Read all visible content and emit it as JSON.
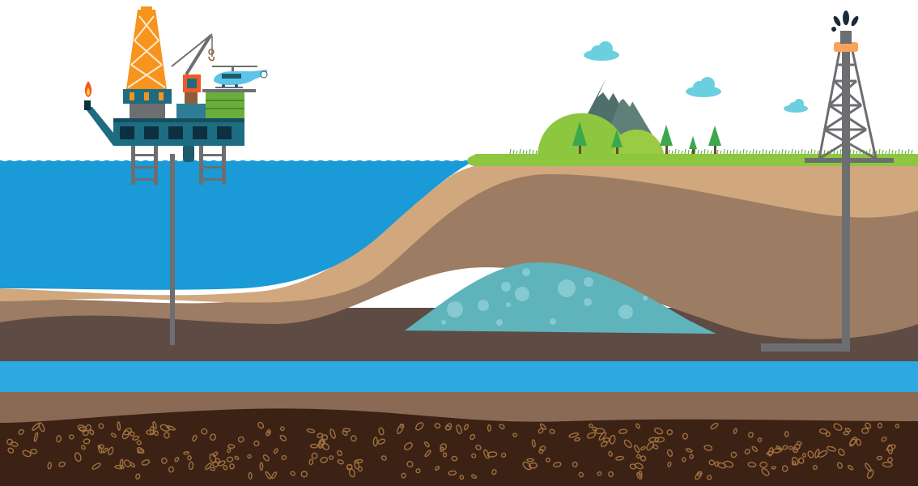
{
  "scene": {
    "kind": "oil-and-gas-illustration",
    "colors": {
      "sky": "#ffffff",
      "sea": "#1a9ad7",
      "sand": "#d1a77e",
      "rock_mid": "#9c7c62",
      "rock_dark": "#5e4b44",
      "aquifer_band": "#2ea8e0",
      "reservoir": "#5fb3bb",
      "deep_earth": "#3b2215",
      "pebbles": "#a0703f",
      "grass": "#8dc63f",
      "rig_teal": "#1e6c82",
      "rig_orange": "#f7941d",
      "derrick_gray": "#6d6e71",
      "well_pipe": "#6d6e71",
      "cloud": "#6ccfe0",
      "helicopter": "#5ec3ea",
      "flame": "#f15a24",
      "oil_spray": "#1b2a3a"
    },
    "icons": {
      "offshore_rig": "offshore-platform-icon",
      "helicopter": "helicopter-icon",
      "onshore_derrick": "oil-derrick-icon",
      "mountain": "mountain-icon",
      "tree": "tree-icon",
      "cloud": "cloud-icon",
      "flame": "flare-flame-icon",
      "gusher": "oil-gusher-icon"
    }
  }
}
